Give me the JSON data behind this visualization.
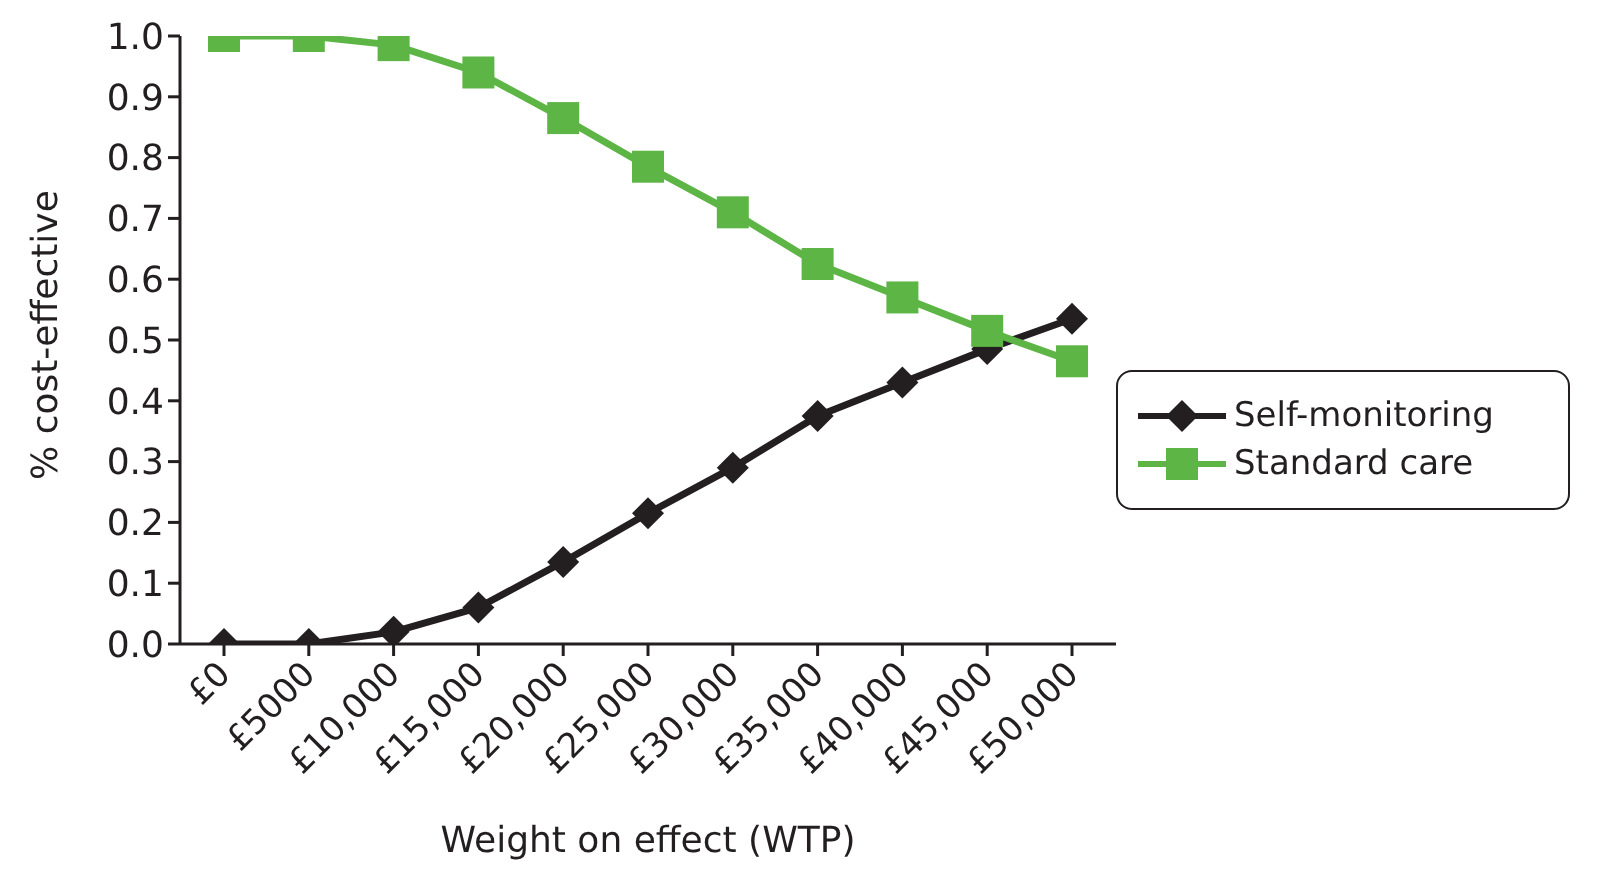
{
  "chart_data": {
    "type": "line",
    "xlabel": "Weight on effect (WTP)",
    "ylabel": "% cost-effective",
    "categories": [
      "£0",
      "£5000",
      "£10,000",
      "£15,000",
      "£20,000",
      "£25,000",
      "£30,000",
      "£35,000",
      "£40,000",
      "£45,000",
      "£50,000"
    ],
    "series": [
      {
        "name": "Self-monitoring",
        "color": "#231f20",
        "marker": "diamond",
        "values": [
          0,
          0,
          0.02,
          0.06,
          0.135,
          0.215,
          0.29,
          0.375,
          0.43,
          0.485,
          0.535
        ]
      },
      {
        "name": "Standard care",
        "color": "#5cb545",
        "marker": "square",
        "values": [
          1.0,
          1.0,
          0.985,
          0.94,
          0.865,
          0.785,
          0.71,
          0.625,
          0.57,
          0.515,
          0.465
        ]
      }
    ],
    "ylim": [
      0,
      1
    ],
    "yticks": [
      {
        "value": 0,
        "label": "0.0"
      },
      {
        "value": 0.1,
        "label": "0.1"
      },
      {
        "value": 0.2,
        "label": "0.2"
      },
      {
        "value": 0.3,
        "label": "0.3"
      },
      {
        "value": 0.4,
        "label": "0.4"
      },
      {
        "value": 0.5,
        "label": "0.5"
      },
      {
        "value": 0.6,
        "label": "0.6"
      },
      {
        "value": 0.7,
        "label": "0.7"
      },
      {
        "value": 0.8,
        "label": "0.8"
      },
      {
        "value": 0.9,
        "label": "0.9"
      },
      {
        "value": 1,
        "label": "1.0"
      }
    ],
    "grid": false,
    "legend": "right"
  }
}
